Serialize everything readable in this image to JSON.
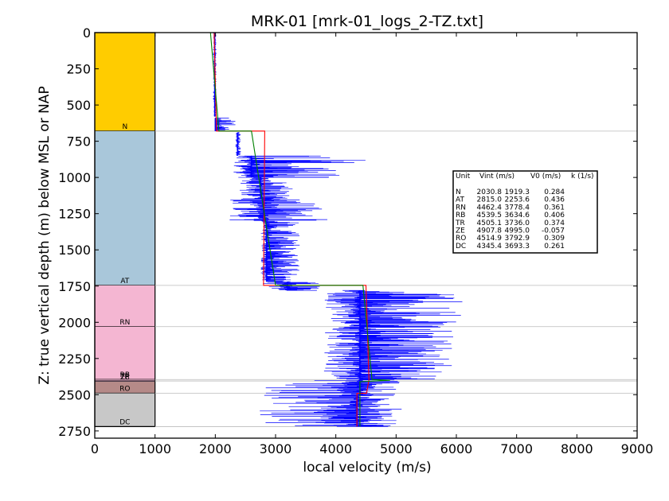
{
  "chart_data": {
    "type": "line",
    "title": "MRK-01 [mrk-01_logs_2-TZ.txt]",
    "xlabel": "local velocity (m/s)",
    "ylabel": "Z: true vertical depth (m) below MSL or NAP",
    "xlim": [
      0,
      9000
    ],
    "ylim": [
      2800,
      0
    ],
    "y_inverted": true,
    "xticks": [
      0,
      1000,
      2000,
      3000,
      4000,
      5000,
      6000,
      7000,
      8000,
      9000
    ],
    "yticks": [
      0,
      250,
      500,
      750,
      1000,
      1250,
      1500,
      1750,
      2000,
      2250,
      2500,
      2750
    ],
    "grid": false,
    "stratigraphic_column": {
      "x_range": [
        0,
        1000
      ],
      "units": [
        {
          "label": "N",
          "top": 0,
          "base": 680,
          "color": "#FFCC00"
        },
        {
          "label": "AT",
          "top": 680,
          "base": 1745,
          "color": "#A9C7DA"
        },
        {
          "label": "RN",
          "top": 1745,
          "base": 2030,
          "color": "#F4B6D2"
        },
        {
          "label": "RB",
          "top": 2030,
          "base": 2395,
          "color": "#F4B6D2"
        },
        {
          "label": "TR",
          "top": 2395,
          "base": 2405,
          "color": "#F4B6D2"
        },
        {
          "label": "ZE",
          "top": 2405,
          "base": 2410,
          "color": "#C89CC8"
        },
        {
          "label": "RO",
          "top": 2410,
          "base": 2490,
          "color": "#B58A88"
        },
        {
          "label": "DC",
          "top": 2490,
          "base": 2720,
          "color": "#C8C8C8"
        }
      ]
    },
    "boundaries": [
      680,
      1745,
      2030,
      2395,
      2405,
      2490,
      2720
    ],
    "series": [
      {
        "color": "#0000FF",
        "style": "sonic-log",
        "segments": [
          {
            "top": 0,
            "base": 580,
            "center": 1990,
            "spread": [
              1960,
              2020
            ]
          },
          {
            "top": 590,
            "base": 680,
            "center": 2000,
            "spread": [
              1990,
              2380
            ]
          },
          {
            "top": 690,
            "base": 850,
            "center": 2370,
            "spread": [
              2330,
              2430
            ]
          },
          {
            "top": 850,
            "base": 1000,
            "center": 2600,
            "spread": [
              2300,
              4600
            ]
          },
          {
            "top": 1000,
            "base": 1150,
            "center": 2750,
            "spread": [
              2400,
              3300
            ]
          },
          {
            "top": 1150,
            "base": 1300,
            "center": 2800,
            "spread": [
              2200,
              3900
            ]
          },
          {
            "top": 1300,
            "base": 1720,
            "center": 2850,
            "spread": [
              2750,
              3400
            ]
          },
          {
            "top": 1720,
            "base": 1780,
            "center": 3200,
            "spread": [
              2750,
              3800
            ]
          },
          {
            "top": 1780,
            "base": 2400,
            "center": 4400,
            "spread": [
              3800,
              6100
            ]
          },
          {
            "top": 2400,
            "base": 2500,
            "center": 4400,
            "spread": [
              2700,
              5100
            ]
          },
          {
            "top": 2500,
            "base": 2720,
            "center": 4350,
            "spread": [
              2700,
              5100
            ]
          }
        ]
      },
      {
        "color": "#FF0000",
        "style": "interval-velocity",
        "points": [
          [
            1980,
            0
          ],
          [
            2020,
            680
          ],
          [
            2820,
            680
          ],
          [
            2800,
            1745
          ],
          [
            4500,
            1745
          ],
          [
            4550,
            2395
          ],
          [
            4510,
            2490
          ],
          [
            4350,
            2490
          ],
          [
            4350,
            2720
          ]
        ]
      },
      {
        "color": "#008000",
        "style": "linear-trend",
        "points": [
          [
            1920,
            0
          ],
          [
            2060,
            680
          ],
          [
            2250,
            680
          ],
          [
            2600,
            680
          ],
          [
            3000,
            1745
          ],
          [
            4450,
            1745
          ],
          [
            4600,
            2395
          ],
          [
            4900,
            2400
          ],
          [
            4400,
            2410
          ],
          [
            4400,
            2720
          ]
        ]
      }
    ],
    "legend": {
      "placement": "right",
      "headers": [
        "Unit",
        "Vint (m/s)",
        "V0 (m/s)",
        "k (1/s)"
      ],
      "rows": [
        [
          "N",
          "2030.8",
          "1919.3",
          "0.284"
        ],
        [
          "AT",
          "2815.0",
          "2253.6",
          "0.436"
        ],
        [
          "RN",
          "4462.4",
          "3778.4",
          "0.361"
        ],
        [
          "RB",
          "4539.5",
          "3634.6",
          "0.406"
        ],
        [
          "TR",
          "4505.1",
          "3736.0",
          "0.374"
        ],
        [
          "ZE",
          "4907.8",
          "4995.0",
          "-0.057"
        ],
        [
          "RO",
          "4514.9",
          "3792.9",
          "0.309"
        ],
        [
          "DC",
          "4345.4",
          "3693.3",
          "0.261"
        ]
      ]
    }
  }
}
